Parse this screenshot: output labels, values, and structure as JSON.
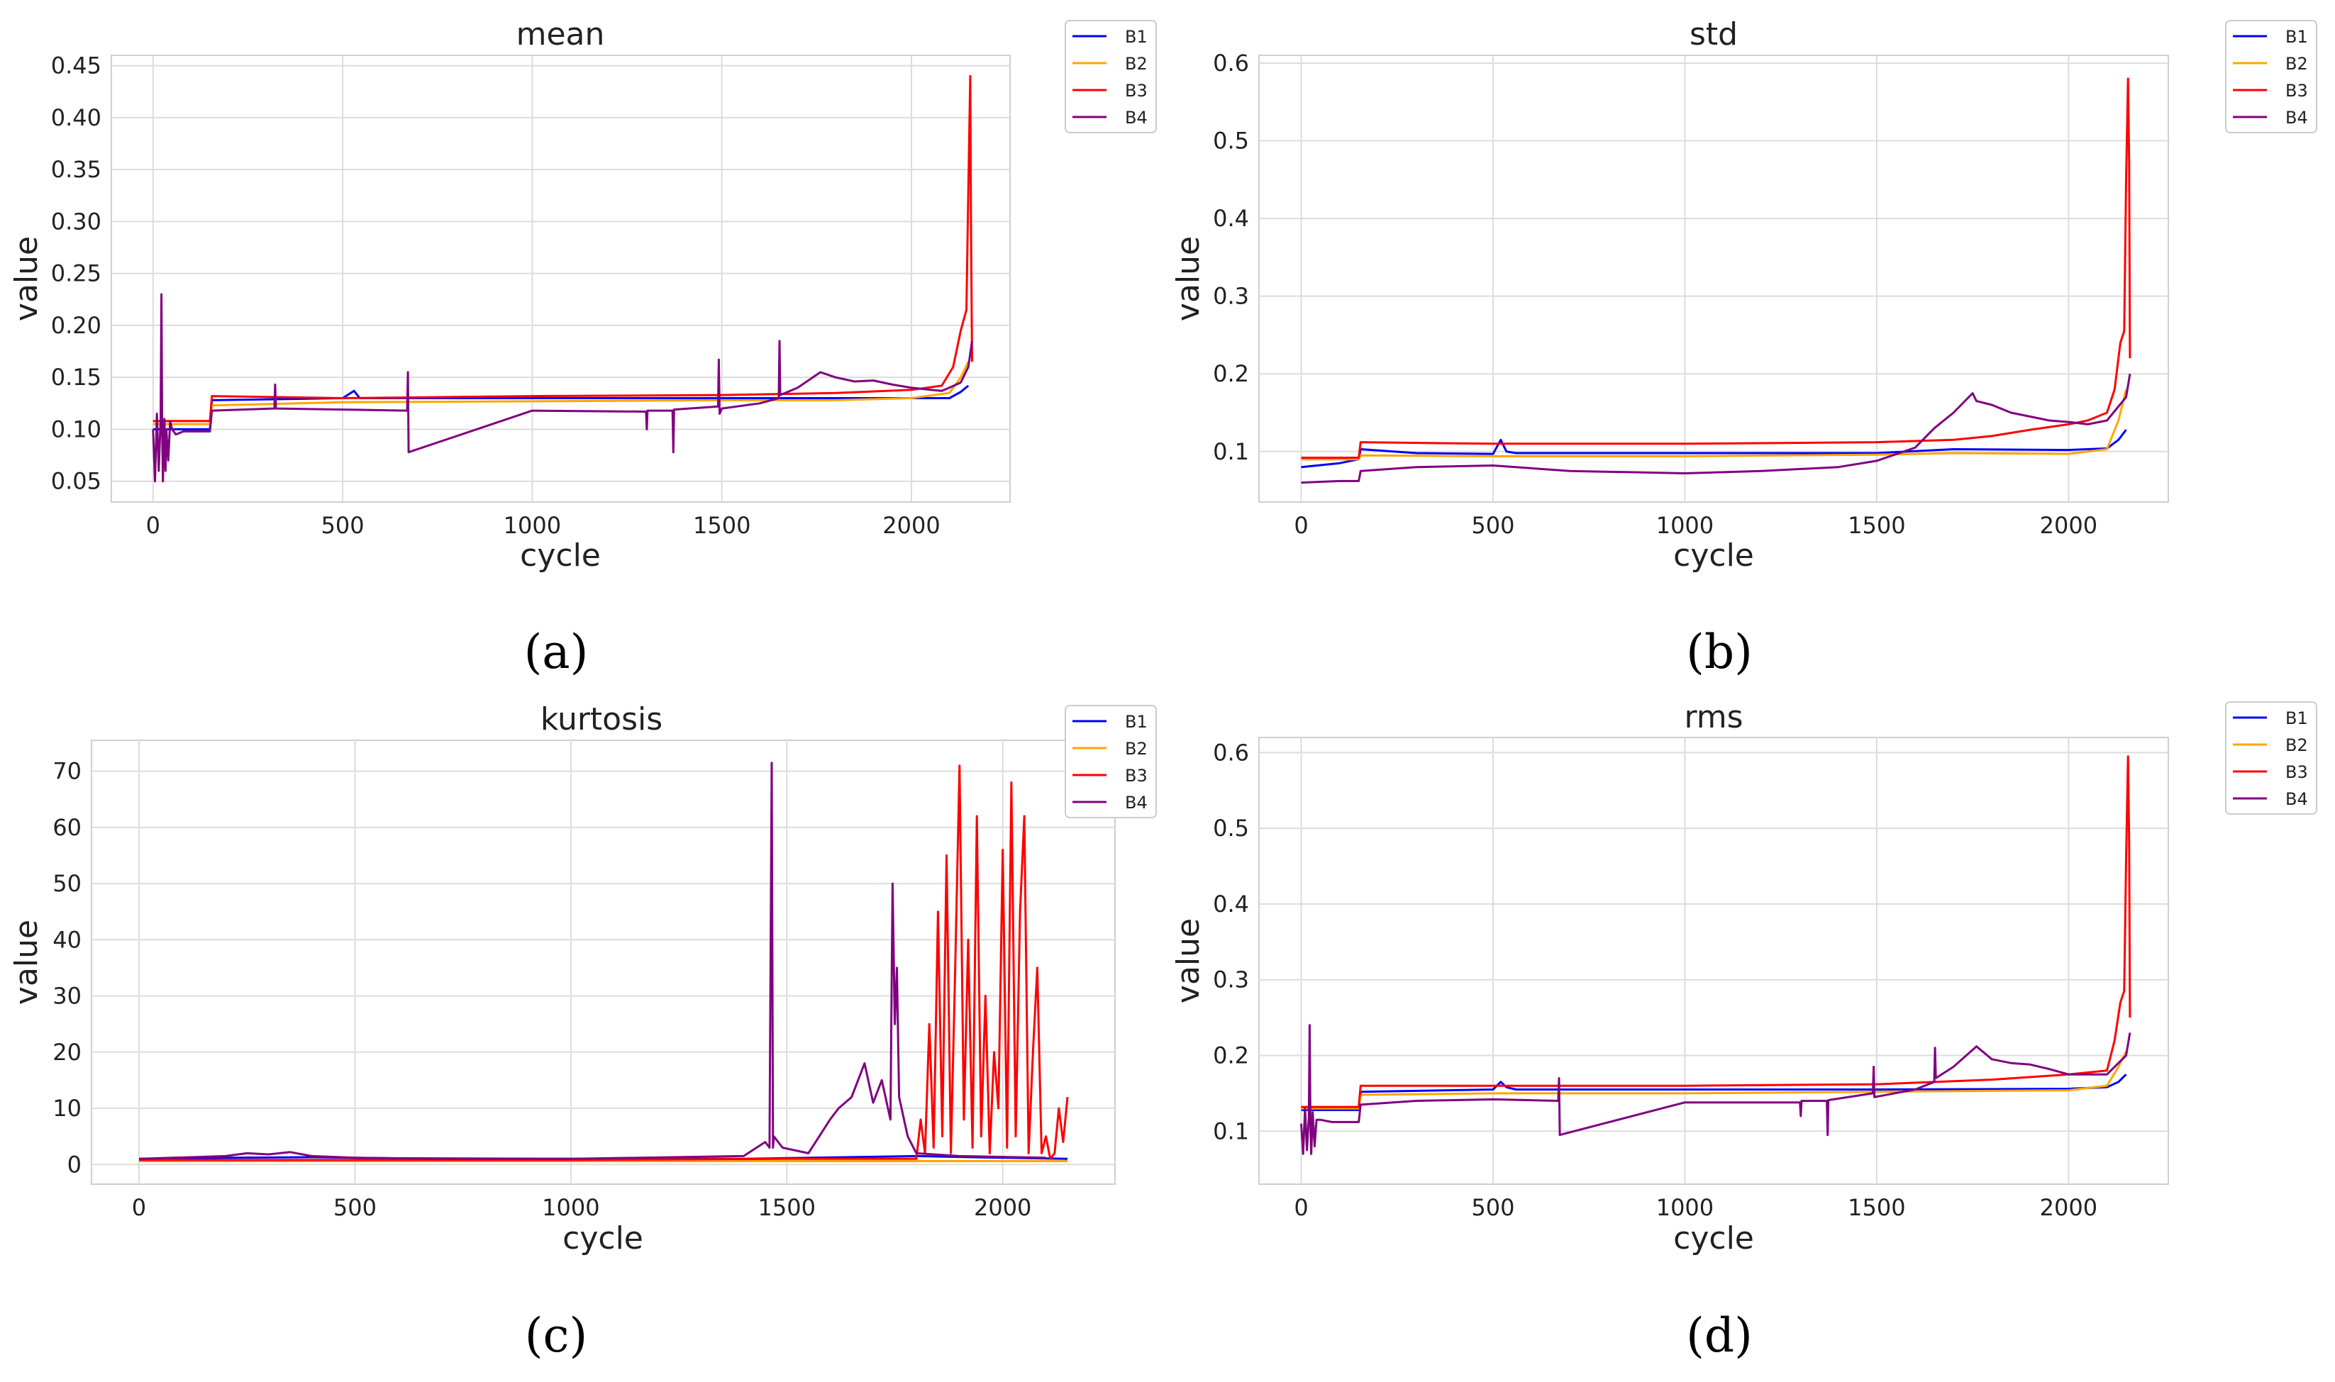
{
  "figure": {
    "series_names": [
      "B1",
      "B2",
      "B3",
      "B4"
    ],
    "series_colors": [
      "#0000ff",
      "#ffa500",
      "#ff0000",
      "#800080"
    ],
    "grid_color": "#dcdcdc",
    "frame_color": "#cfcfcf"
  },
  "chart_data": [
    {
      "type": "line",
      "title": "mean",
      "caption": "(a)",
      "xlabel": "cycle",
      "ylabel": "value",
      "xlim": [
        -110,
        2260
      ],
      "ylim": [
        0.03,
        0.46
      ],
      "xticks": [
        0,
        500,
        1000,
        1500,
        2000
      ],
      "yticks": [
        0.05,
        0.1,
        0.15,
        0.2,
        0.25,
        0.3,
        0.35,
        0.4,
        0.45
      ],
      "ytick_labels": [
        "0.05",
        "0.10",
        "0.15",
        "0.20",
        "0.25",
        "0.30",
        "0.35",
        "0.40",
        "0.45"
      ],
      "legend": "outside-top-right",
      "series": [
        {
          "name": "B1",
          "x": [
            0,
            150,
            155,
            500,
            530,
            545,
            1000,
            1500,
            1800,
            2100,
            2130,
            2150
          ],
          "y": [
            0.1,
            0.1,
            0.128,
            0.13,
            0.137,
            0.13,
            0.13,
            0.13,
            0.13,
            0.13,
            0.136,
            0.142
          ]
        },
        {
          "name": "B2",
          "x": [
            0,
            150,
            155,
            500,
            1000,
            1500,
            1800,
            2000,
            2100,
            2130,
            2150
          ],
          "y": [
            0.105,
            0.105,
            0.123,
            0.126,
            0.127,
            0.128,
            0.128,
            0.13,
            0.135,
            0.15,
            0.165
          ]
        },
        {
          "name": "B3",
          "x": [
            0,
            150,
            155,
            500,
            1000,
            1500,
            1800,
            2000,
            2080,
            2110,
            2130,
            2145,
            2150,
            2155,
            2157,
            2160
          ],
          "y": [
            0.108,
            0.108,
            0.132,
            0.13,
            0.132,
            0.133,
            0.135,
            0.138,
            0.142,
            0.16,
            0.195,
            0.215,
            0.33,
            0.44,
            0.3,
            0.165
          ]
        },
        {
          "name": "B4",
          "x": [
            0,
            5,
            10,
            15,
            20,
            22,
            24,
            26,
            30,
            33,
            35,
            40,
            45,
            50,
            60,
            80,
            150,
            155,
            320,
            322,
            324,
            500,
            670,
            672,
            674,
            1000,
            1300,
            1302,
            1304,
            1370,
            1372,
            1374,
            1490,
            1492,
            1494,
            1500,
            1600,
            1650,
            1652,
            1654,
            1700,
            1760,
            1800,
            1850,
            1900,
            1950,
            2000,
            2050,
            2080,
            2100,
            2130,
            2150,
            2160
          ],
          "y": [
            0.1,
            0.05,
            0.115,
            0.06,
            0.11,
            0.23,
            0.1,
            0.05,
            0.11,
            0.06,
            0.1,
            0.07,
            0.108,
            0.1,
            0.095,
            0.098,
            0.098,
            0.118,
            0.12,
            0.143,
            0.12,
            0.119,
            0.118,
            0.155,
            0.078,
            0.118,
            0.117,
            0.1,
            0.118,
            0.118,
            0.078,
            0.119,
            0.122,
            0.167,
            0.115,
            0.12,
            0.125,
            0.13,
            0.185,
            0.133,
            0.14,
            0.155,
            0.15,
            0.146,
            0.147,
            0.143,
            0.14,
            0.138,
            0.137,
            0.14,
            0.145,
            0.16,
            0.185
          ]
        }
      ]
    },
    {
      "type": "line",
      "title": "std",
      "caption": "(b)",
      "xlabel": "cycle",
      "ylabel": "value",
      "xlim": [
        -110,
        2260
      ],
      "ylim": [
        0.035,
        0.61
      ],
      "xticks": [
        0,
        500,
        1000,
        1500,
        2000
      ],
      "yticks": [
        0.1,
        0.2,
        0.3,
        0.4,
        0.5,
        0.6
      ],
      "ytick_labels": [
        "0.1",
        "0.2",
        "0.3",
        "0.4",
        "0.5",
        "0.6"
      ],
      "legend": "outside-top-right",
      "series": [
        {
          "name": "B1",
          "x": [
            0,
            100,
            150,
            155,
            300,
            500,
            520,
            535,
            560,
            1000,
            1500,
            1700,
            2000,
            2100,
            2130,
            2150
          ],
          "y": [
            0.08,
            0.085,
            0.09,
            0.103,
            0.098,
            0.097,
            0.115,
            0.1,
            0.098,
            0.098,
            0.098,
            0.103,
            0.102,
            0.104,
            0.115,
            0.128
          ]
        },
        {
          "name": "B2",
          "x": [
            0,
            150,
            155,
            500,
            1000,
            1500,
            1700,
            2000,
            2100,
            2130,
            2150
          ],
          "y": [
            0.09,
            0.09,
            0.095,
            0.094,
            0.094,
            0.096,
            0.098,
            0.097,
            0.103,
            0.14,
            0.18
          ]
        },
        {
          "name": "B3",
          "x": [
            0,
            150,
            155,
            500,
            1000,
            1500,
            1700,
            1800,
            1900,
            2000,
            2050,
            2100,
            2120,
            2135,
            2145,
            2150,
            2155,
            2158,
            2160
          ],
          "y": [
            0.092,
            0.092,
            0.112,
            0.11,
            0.11,
            0.112,
            0.115,
            0.12,
            0.128,
            0.135,
            0.14,
            0.15,
            0.18,
            0.24,
            0.255,
            0.45,
            0.58,
            0.47,
            0.22
          ]
        },
        {
          "name": "B4",
          "x": [
            0,
            100,
            150,
            155,
            300,
            500,
            700,
            1000,
            1200,
            1400,
            1500,
            1600,
            1650,
            1700,
            1750,
            1760,
            1800,
            1850,
            1900,
            1950,
            2000,
            2050,
            2100,
            2150,
            2160
          ],
          "y": [
            0.06,
            0.062,
            0.062,
            0.075,
            0.08,
            0.082,
            0.075,
            0.072,
            0.075,
            0.08,
            0.088,
            0.105,
            0.13,
            0.15,
            0.175,
            0.165,
            0.16,
            0.15,
            0.145,
            0.14,
            0.138,
            0.135,
            0.14,
            0.17,
            0.2
          ]
        }
      ]
    },
    {
      "type": "line",
      "title": "kurtosis",
      "caption": "(c)",
      "xlabel": "cycle",
      "ylabel": "value",
      "xlim": [
        -110,
        2260
      ],
      "ylim": [
        -3.5,
        75.5
      ],
      "xticks": [
        0,
        500,
        1000,
        1500,
        2000
      ],
      "yticks": [
        0,
        10,
        20,
        30,
        40,
        50,
        60,
        70
      ],
      "ytick_labels": [
        "0",
        "10",
        "20",
        "30",
        "40",
        "50",
        "60",
        "70"
      ],
      "legend": "outside-top-right",
      "series": [
        {
          "name": "B1",
          "x": [
            0,
            200,
            400,
            600,
            1000,
            1400,
            1800,
            2000,
            2150
          ],
          "y": [
            1.0,
            1.2,
            1.3,
            1.1,
            1.0,
            1.0,
            1.5,
            1.2,
            1.0
          ]
        },
        {
          "name": "B2",
          "x": [
            0,
            500,
            1000,
            1500,
            2000,
            2150
          ],
          "y": [
            0.6,
            0.6,
            0.6,
            0.6,
            0.6,
            0.6
          ]
        },
        {
          "name": "B3",
          "x": [
            0,
            1000,
            1500,
            1800,
            1810,
            1820,
            1830,
            1840,
            1850,
            1860,
            1870,
            1880,
            1890,
            1900,
            1910,
            1920,
            1930,
            1940,
            1950,
            1960,
            1970,
            1980,
            1990,
            2000,
            2010,
            2020,
            2030,
            2040,
            2050,
            2060,
            2070,
            2080,
            2090,
            2100,
            2110,
            2120,
            2130,
            2140,
            2150
          ],
          "y": [
            0.8,
            0.8,
            1.0,
            1.0,
            8,
            2,
            25,
            3,
            45,
            5,
            55,
            2,
            35,
            71,
            8,
            40,
            3,
            62,
            5,
            30,
            2,
            20,
            10,
            56,
            3,
            68,
            5,
            45,
            62,
            2,
            20,
            35,
            2,
            5,
            1,
            2,
            10,
            4,
            12
          ]
        },
        {
          "name": "B4",
          "x": [
            0,
            200,
            250,
            300,
            350,
            400,
            500,
            700,
            1000,
            1400,
            1450,
            1460,
            1465,
            1468,
            1470,
            1490,
            1550,
            1600,
            1620,
            1650,
            1680,
            1700,
            1720,
            1740,
            1745,
            1750,
            1755,
            1760,
            1780,
            1800,
            1900,
            2100
          ],
          "y": [
            1.0,
            1.5,
            2.0,
            1.8,
            2.2,
            1.5,
            1.2,
            1.0,
            1.0,
            1.5,
            4.0,
            3.0,
            71.5,
            3.0,
            5.0,
            3.0,
            2.0,
            8.0,
            10.0,
            12.0,
            18.0,
            11.0,
            15.0,
            8.0,
            50.0,
            25.0,
            35.0,
            12.0,
            5.0,
            2.0,
            1.5,
            1.2
          ]
        }
      ]
    },
    {
      "type": "line",
      "title": "rms",
      "caption": "(d)",
      "xlabel": "cycle",
      "ylabel": "value",
      "xlim": [
        -110,
        2260
      ],
      "ylim": [
        0.03,
        0.62
      ],
      "xticks": [
        0,
        500,
        1000,
        1500,
        2000
      ],
      "yticks": [
        0.1,
        0.2,
        0.3,
        0.4,
        0.5,
        0.6
      ],
      "ytick_labels": [
        "0.1",
        "0.2",
        "0.3",
        "0.4",
        "0.5",
        "0.6"
      ],
      "legend": "outside-top-right",
      "series": [
        {
          "name": "B1",
          "x": [
            0,
            150,
            155,
            500,
            520,
            535,
            560,
            1000,
            1500,
            2000,
            2100,
            2130,
            2150
          ],
          "y": [
            0.128,
            0.128,
            0.152,
            0.155,
            0.165,
            0.158,
            0.155,
            0.155,
            0.155,
            0.156,
            0.158,
            0.165,
            0.175
          ]
        },
        {
          "name": "B2",
          "x": [
            0,
            150,
            155,
            500,
            1000,
            1500,
            2000,
            2100,
            2130,
            2150
          ],
          "y": [
            0.13,
            0.13,
            0.148,
            0.15,
            0.15,
            0.152,
            0.154,
            0.16,
            0.185,
            0.205
          ]
        },
        {
          "name": "B3",
          "x": [
            0,
            150,
            155,
            500,
            1000,
            1500,
            1800,
            2000,
            2100,
            2120,
            2135,
            2145,
            2150,
            2155,
            2158,
            2160
          ],
          "y": [
            0.132,
            0.132,
            0.16,
            0.16,
            0.16,
            0.162,
            0.168,
            0.175,
            0.18,
            0.22,
            0.27,
            0.285,
            0.46,
            0.595,
            0.48,
            0.25
          ]
        },
        {
          "name": "B4",
          "x": [
            0,
            5,
            10,
            15,
            20,
            22,
            24,
            26,
            30,
            35,
            40,
            50,
            80,
            150,
            155,
            300,
            500,
            670,
            672,
            674,
            1000,
            1300,
            1302,
            1304,
            1370,
            1372,
            1374,
            1490,
            1492,
            1494,
            1600,
            1650,
            1652,
            1654,
            1700,
            1760,
            1800,
            1850,
            1900,
            1950,
            2000,
            2100,
            2150,
            2160
          ],
          "y": [
            0.11,
            0.07,
            0.13,
            0.075,
            0.12,
            0.24,
            0.11,
            0.07,
            0.125,
            0.08,
            0.115,
            0.115,
            0.112,
            0.112,
            0.135,
            0.14,
            0.142,
            0.14,
            0.17,
            0.095,
            0.138,
            0.138,
            0.12,
            0.14,
            0.14,
            0.095,
            0.141,
            0.15,
            0.185,
            0.145,
            0.155,
            0.165,
            0.21,
            0.17,
            0.185,
            0.212,
            0.195,
            0.19,
            0.188,
            0.182,
            0.175,
            0.175,
            0.2,
            0.23
          ]
        }
      ]
    }
  ]
}
